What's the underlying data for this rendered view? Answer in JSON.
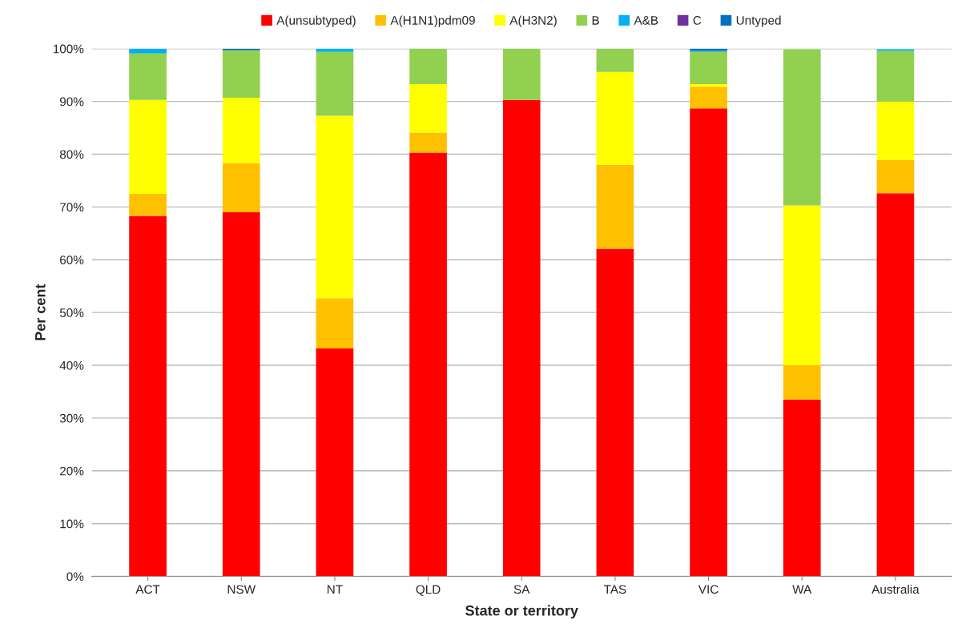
{
  "chart_data": {
    "type": "bar",
    "stacked": true,
    "xlabel": "State or territory",
    "ylabel": "Per cent",
    "categories": [
      "ACT",
      "NSW",
      "NT",
      "QLD",
      "SA",
      "TAS",
      "VIC",
      "WA",
      "Australia"
    ],
    "series": [
      {
        "name": "A(unsubtyped)",
        "color": "#ff0000",
        "values": [
          68.3,
          69.0,
          43.2,
          80.3,
          90.3,
          62.1,
          88.7,
          33.5,
          72.6
        ]
      },
      {
        "name": "A(H1N1)pdm09",
        "color": "#ffc000",
        "values": [
          4.2,
          9.3,
          9.5,
          3.8,
          0,
          15.9,
          4.1,
          6.5,
          6.3
        ]
      },
      {
        "name": "A(H3N2)",
        "color": "#ffff00",
        "values": [
          17.8,
          12.4,
          34.6,
          9.2,
          0,
          17.6,
          0.5,
          30.3,
          11.1
        ]
      },
      {
        "name": "B",
        "color": "#92d050",
        "values": [
          8.8,
          9.0,
          12.1,
          6.7,
          9.7,
          4.4,
          6.1,
          29.6,
          9.6
        ]
      },
      {
        "name": "A&B",
        "color": "#00b0f0",
        "values": [
          0.9,
          0,
          0.6,
          0,
          0,
          0,
          0.2,
          null,
          0.3
        ]
      },
      {
        "name": "C",
        "color": "#7030a0",
        "values": [
          0,
          0,
          0,
          0,
          0,
          0,
          0,
          0,
          0
        ]
      },
      {
        "name": "Untyped",
        "color": "#0070c0",
        "values": [
          0,
          0.3,
          0,
          0,
          0,
          0,
          0.4,
          0,
          null
        ]
      }
    ],
    "ylim": [
      0,
      100
    ],
    "yticks": [
      {
        "value": 0,
        "label": "0%"
      },
      {
        "value": 10,
        "label": "10%"
      },
      {
        "value": 20,
        "label": "20%"
      },
      {
        "value": 30,
        "label": "30%"
      },
      {
        "value": 40,
        "label": "40%"
      },
      {
        "value": 50,
        "label": "50%"
      },
      {
        "value": 60,
        "label": "60%"
      },
      {
        "value": 70,
        "label": "70%"
      },
      {
        "value": 80,
        "label": "80%"
      },
      {
        "value": 90,
        "label": "90%"
      },
      {
        "value": 100,
        "label": "100%"
      }
    ],
    "grid": "y",
    "legend": "top"
  }
}
